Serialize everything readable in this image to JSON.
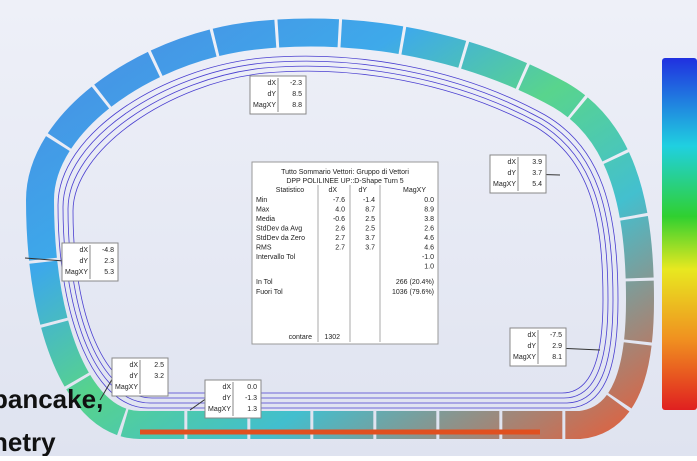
{
  "callouts": [
    {
      "rows": [
        [
          "dX",
          "-2.3"
        ],
        [
          "dY",
          "8.5"
        ],
        [
          "MagXY",
          "8.8"
        ]
      ]
    },
    {
      "rows": [
        [
          "dX",
          "3.9"
        ],
        [
          "dY",
          "3.7"
        ],
        [
          "MagXY",
          "5.4"
        ]
      ]
    },
    {
      "rows": [
        [
          "dX",
          "-4.8"
        ],
        [
          "dY",
          "2.3"
        ],
        [
          "MagXY",
          "5.3"
        ]
      ]
    },
    {
      "rows": [
        [
          "dX",
          "-7.5"
        ],
        [
          "dY",
          "2.9"
        ],
        [
          "MagXY",
          "8.1"
        ]
      ]
    },
    {
      "rows": [
        [
          "dX",
          "2.5"
        ],
        [
          "dY",
          "3.2"
        ],
        [
          "MagXY"
        ]
      ]
    },
    {
      "rows": [
        [
          "dX",
          "0.0"
        ],
        [
          "dY",
          "-1.3"
        ],
        [
          "MagXY",
          "1.3"
        ]
      ]
    }
  ],
  "summary": {
    "title": "Tutto Sommario Vettori: Gruppo di Vettori",
    "subtitle": "DPP POLILINEE UP::D-Shape Turn 5",
    "header": [
      "Statistico",
      "dX",
      "dY",
      "MagXY"
    ],
    "rows": [
      [
        "Min",
        "-7.6",
        "-1.4",
        "0.0"
      ],
      [
        "Max",
        "4.0",
        "8.7",
        "8.9"
      ],
      [
        "Media",
        "-0.6",
        "2.5",
        "3.8"
      ],
      [
        "StdDev da Avg",
        "2.6",
        "2.5",
        "2.6"
      ],
      [
        "StdDev da Zero",
        "2.7",
        "3.7",
        "4.6"
      ],
      [
        "RMS",
        "2.7",
        "3.7",
        "4.6"
      ],
      [
        "Intervallo Tol",
        "",
        "",
        "-1.0"
      ],
      [
        "",
        "",
        "",
        "1.0"
      ],
      [
        "In Tol",
        "",
        "",
        "266 (20.4%)"
      ],
      [
        "Fuori Tol",
        "",
        "",
        "1036 (79.6%)"
      ]
    ],
    "count_label": "contare",
    "count": "1302"
  },
  "overlay": [
    "pancake,",
    "netry"
  ]
}
